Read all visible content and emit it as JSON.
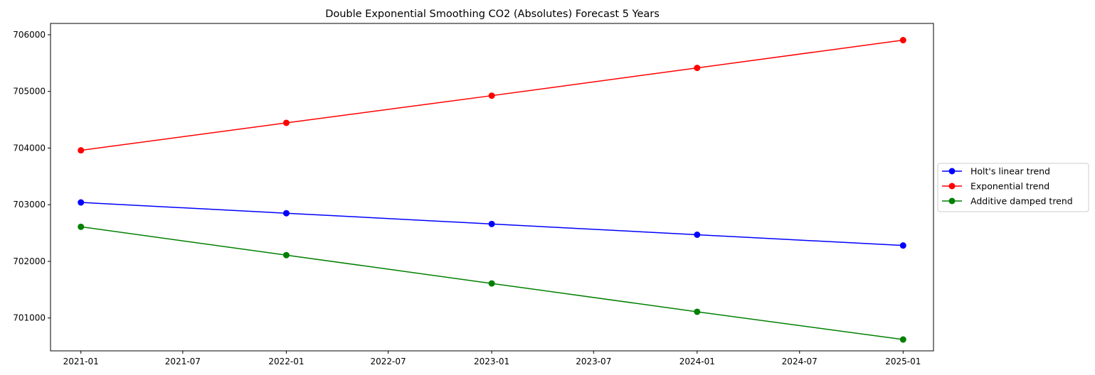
{
  "chart_data": {
    "type": "line",
    "title": "Double Exponential Smoothing CO2 (Absolutes) Forecast 5 Years",
    "xlabel": "",
    "ylabel": "",
    "x": [
      "2021-01-01",
      "2022-01-01",
      "2023-01-01",
      "2024-01-01",
      "2025-01-01"
    ],
    "xlim": [
      "2020-11-08",
      "2025-02-24"
    ],
    "ylim": [
      700420,
      706200
    ],
    "x_ticks": [
      "2021-01",
      "2021-07",
      "2022-01",
      "2022-07",
      "2023-01",
      "2023-07",
      "2024-01",
      "2024-07",
      "2025-01"
    ],
    "y_ticks": [
      701000,
      702000,
      703000,
      704000,
      705000,
      706000
    ],
    "grid": false,
    "legend_position": "center-right-outside",
    "series": [
      {
        "name": "Holt's linear trend",
        "color": "#0000ff",
        "marker": "circle",
        "values": [
          703040,
          702850,
          702660,
          702470,
          702280
        ]
      },
      {
        "name": "Exponential trend",
        "color": "#ff0000",
        "marker": "circle",
        "values": [
          703960,
          704445,
          704925,
          705415,
          705905
        ]
      },
      {
        "name": "Additive damped trend",
        "color": "#008000",
        "marker": "circle",
        "values": [
          702610,
          702110,
          701610,
          701110,
          700620
        ]
      }
    ]
  }
}
